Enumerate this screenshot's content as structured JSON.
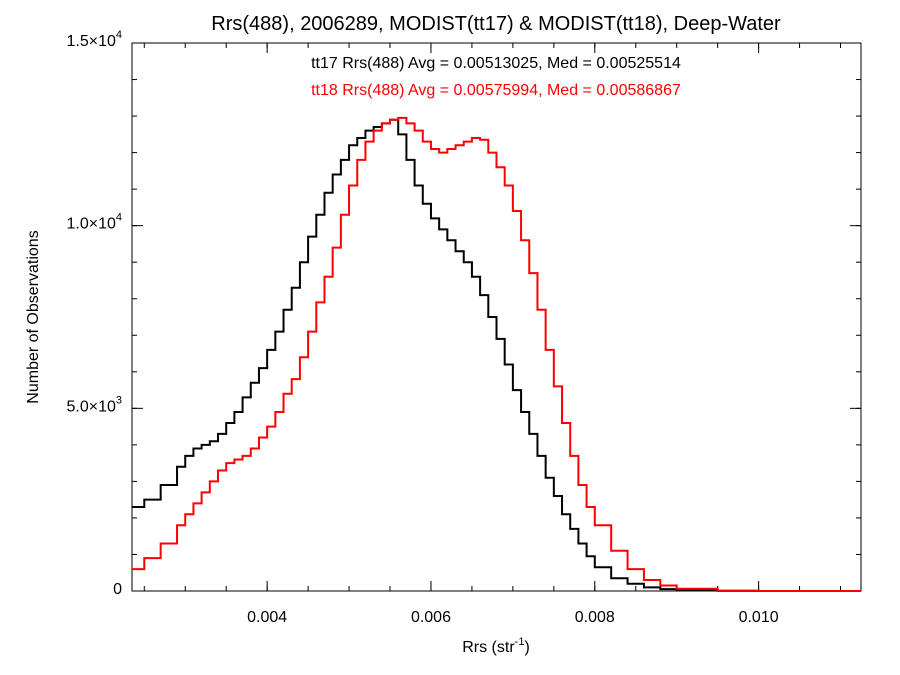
{
  "chart_data": {
    "type": "line",
    "title": "Rrs(488), 2006289, MODIST(tt17) & MODIST(tt18), Deep-Water",
    "xlabel_main": "Rrs (str",
    "xlabel_sup": "-1",
    "xlabel_close": ")",
    "ylabel": "Number of Observations",
    "xlim": [
      0.00235,
      0.01125
    ],
    "ylim": [
      0,
      15000
    ],
    "x_ticks": [
      {
        "value": 0.004,
        "label": "0.004"
      },
      {
        "value": 0.006,
        "label": "0.006"
      },
      {
        "value": 0.008,
        "label": "0.008"
      },
      {
        "value": 0.01,
        "label": "0.010"
      }
    ],
    "y_ticks": [
      {
        "value": 0,
        "mant": "0",
        "exp": ""
      },
      {
        "value": 5000,
        "mant": "5.0×10",
        "exp": "3"
      },
      {
        "value": 10000,
        "mant": "1.0×10",
        "exp": "4"
      },
      {
        "value": 15000,
        "mant": "1.5×10",
        "exp": "4"
      }
    ],
    "x_minor_step": 0.0005,
    "y_minor_step": 1000,
    "annotations": [
      {
        "text": "tt17 Rrs(488) Avg = 0.00513025, Med = 0.00525514",
        "color": "#000000"
      },
      {
        "text": "tt18 Rrs(488) Avg = 0.00575994, Med = 0.00586867",
        "color": "#ff0000"
      }
    ],
    "series": [
      {
        "color": "#000000",
        "x": [
          0.00235,
          0.0025,
          0.0027,
          0.0029,
          0.003,
          0.0031,
          0.0032,
          0.0033,
          0.0034,
          0.0035,
          0.0036,
          0.0037,
          0.0038,
          0.0039,
          0.004,
          0.0041,
          0.0042,
          0.0043,
          0.0044,
          0.0045,
          0.0046,
          0.0047,
          0.0048,
          0.0049,
          0.005,
          0.0051,
          0.0052,
          0.0053,
          0.0054,
          0.0055,
          0.0056,
          0.0057,
          0.0058,
          0.0059,
          0.006,
          0.0061,
          0.0062,
          0.0063,
          0.0064,
          0.0065,
          0.0066,
          0.0067,
          0.0068,
          0.0069,
          0.007,
          0.0071,
          0.0072,
          0.0073,
          0.0074,
          0.0075,
          0.0076,
          0.0077,
          0.0078,
          0.0079,
          0.008,
          0.0082,
          0.0084,
          0.0086,
          0.0088,
          0.009,
          0.0095,
          0.01,
          0.01125
        ],
        "values": [
          2300,
          2500,
          2900,
          3400,
          3700,
          3900,
          4000,
          4100,
          4300,
          4600,
          4900,
          5300,
          5700,
          6100,
          6600,
          7100,
          7700,
          8300,
          9000,
          9700,
          10300,
          10900,
          11400,
          11800,
          12200,
          12400,
          12600,
          12700,
          12800,
          12900,
          12500,
          11800,
          11100,
          10600,
          10200,
          9900,
          9600,
          9300,
          9000,
          8600,
          8100,
          7500,
          6900,
          6200,
          5500,
          4900,
          4300,
          3700,
          3100,
          2600,
          2100,
          1700,
          1300,
          950,
          650,
          350,
          200,
          100,
          50,
          20,
          5,
          0,
          0
        ]
      },
      {
        "color": "#ff0000",
        "x": [
          0.00235,
          0.0025,
          0.0027,
          0.0029,
          0.003,
          0.0031,
          0.0032,
          0.0033,
          0.0034,
          0.0035,
          0.0036,
          0.0037,
          0.0038,
          0.0039,
          0.004,
          0.0041,
          0.0042,
          0.0043,
          0.0044,
          0.0045,
          0.0046,
          0.0047,
          0.0048,
          0.0049,
          0.005,
          0.0051,
          0.0052,
          0.0053,
          0.0054,
          0.0055,
          0.0056,
          0.0057,
          0.0058,
          0.0059,
          0.006,
          0.0061,
          0.0062,
          0.0063,
          0.0064,
          0.0065,
          0.0066,
          0.0067,
          0.0068,
          0.0069,
          0.007,
          0.0071,
          0.0072,
          0.0073,
          0.0074,
          0.0075,
          0.0076,
          0.0077,
          0.0078,
          0.0079,
          0.008,
          0.0082,
          0.0084,
          0.0086,
          0.0088,
          0.009,
          0.0095,
          0.01,
          0.01125
        ],
        "values": [
          600,
          900,
          1300,
          1800,
          2100,
          2400,
          2700,
          3000,
          3300,
          3500,
          3600,
          3700,
          3900,
          4200,
          4500,
          4900,
          5400,
          5800,
          6400,
          7100,
          7900,
          8600,
          9400,
          10300,
          11100,
          11800,
          12300,
          12600,
          12800,
          12900,
          12950,
          12800,
          12600,
          12300,
          12100,
          12000,
          12100,
          12200,
          12300,
          12400,
          12350,
          12000,
          11600,
          11100,
          10400,
          9600,
          8700,
          7700,
          6600,
          5600,
          4600,
          3700,
          2900,
          2300,
          1800,
          1100,
          600,
          300,
          150,
          60,
          10,
          0,
          0
        ]
      }
    ]
  }
}
